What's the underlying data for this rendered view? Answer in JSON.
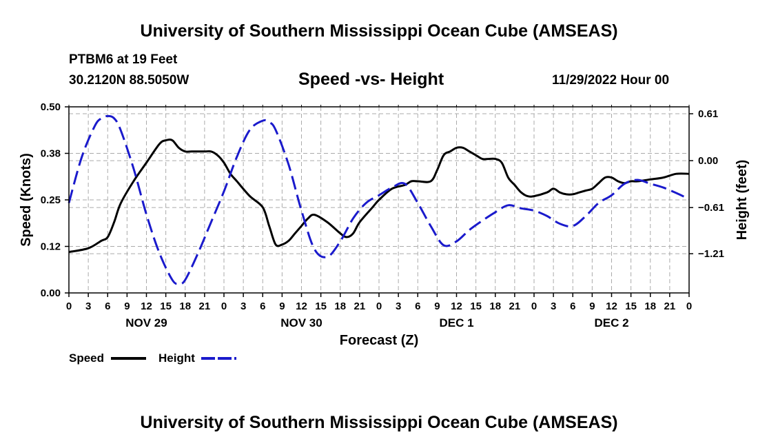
{
  "header": {
    "title": "University of Southern Mississippi Ocean Cube (AMSEAS)",
    "station": "PTBM6 at 19 Feet",
    "coords": "30.2120N  88.5050W",
    "subtitle": "Speed -vs- Height",
    "datestamp": "11/29/2022 Hour 00"
  },
  "footer": {
    "title": "University of Southern Mississippi Ocean Cube (AMSEAS)"
  },
  "colors": {
    "speed": "#000000",
    "height": "#1a1acc",
    "grid": "#aaaaaa"
  },
  "chart_data": {
    "type": "line",
    "title": "Speed -vs- Height",
    "xlabel": "Forecast (Z)",
    "ylabel": "Speed (Knots)",
    "y2label": "Height (feet)",
    "xlim": [
      0,
      96
    ],
    "ylim": [
      0,
      0.5
    ],
    "y2lim": [
      -1.72,
      0.7
    ],
    "x_tick_labels": [
      "0",
      "3",
      "6",
      "9",
      "12",
      "15",
      "18",
      "21",
      "0",
      "3",
      "6",
      "9",
      "12",
      "15",
      "18",
      "21",
      "0",
      "3",
      "6",
      "9",
      "12",
      "15",
      "18",
      "21",
      "0",
      "3",
      "6",
      "9",
      "12",
      "15",
      "18",
      "21",
      "0"
    ],
    "y_ticks": [
      {
        "value": 0,
        "label": "0.00"
      },
      {
        "value": 0.125,
        "label": "0.12"
      },
      {
        "value": 0.25,
        "label": "0.25"
      },
      {
        "value": 0.375,
        "label": "0.38"
      },
      {
        "value": 0.5,
        "label": "0.50"
      }
    ],
    "y2_ticks": [
      {
        "value": 0.61,
        "label": "0.61"
      },
      {
        "value": 0.0,
        "label": "0.00"
      },
      {
        "value": -0.61,
        "label": "−0.61"
      },
      {
        "value": -1.21,
        "label": "−1.21"
      }
    ],
    "day_labels": [
      {
        "x": 12,
        "label": "NOV 29"
      },
      {
        "x": 36,
        "label": "NOV 30"
      },
      {
        "x": 60,
        "label": "DEC 1"
      },
      {
        "x": 84,
        "label": "DEC 2"
      }
    ],
    "series": [
      {
        "name": "Speed",
        "axis": "left",
        "x": [
          0,
          3,
          5,
          6,
          7,
          8,
          10,
          12,
          14,
          15,
          16,
          17,
          18,
          19,
          21,
          22,
          23,
          24,
          25,
          26,
          28,
          30,
          31,
          32,
          33,
          34,
          35,
          36,
          37,
          38,
          40,
          42,
          43,
          44,
          45,
          47,
          48,
          50,
          52,
          53,
          54,
          56,
          57,
          58,
          59,
          60,
          61,
          62,
          63,
          64,
          65,
          66,
          67,
          68,
          69,
          70,
          71,
          72,
          74,
          75,
          76,
          77,
          78,
          79,
          80,
          81,
          82,
          83,
          84,
          85,
          86,
          87,
          88,
          90,
          92,
          94,
          96
        ],
        "values": [
          0.11,
          0.12,
          0.14,
          0.15,
          0.19,
          0.24,
          0.3,
          0.35,
          0.4,
          0.41,
          0.41,
          0.39,
          0.38,
          0.38,
          0.38,
          0.38,
          0.37,
          0.35,
          0.32,
          0.3,
          0.26,
          0.23,
          0.18,
          0.13,
          0.13,
          0.14,
          0.16,
          0.18,
          0.2,
          0.21,
          0.19,
          0.16,
          0.15,
          0.16,
          0.19,
          0.23,
          0.25,
          0.28,
          0.29,
          0.3,
          0.3,
          0.3,
          0.33,
          0.37,
          0.38,
          0.39,
          0.39,
          0.38,
          0.37,
          0.36,
          0.36,
          0.36,
          0.35,
          0.31,
          0.29,
          0.27,
          0.26,
          0.26,
          0.27,
          0.28,
          0.27,
          0.265,
          0.265,
          0.27,
          0.275,
          0.28,
          0.295,
          0.31,
          0.31,
          0.3,
          0.295,
          0.3,
          0.3,
          0.305,
          0.31,
          0.32,
          0.32
        ]
      },
      {
        "name": "Height",
        "axis": "right",
        "x": [
          0,
          2,
          4,
          5,
          6,
          7,
          8,
          10,
          12,
          14,
          16,
          17,
          18,
          20,
          22,
          24,
          26,
          28,
          30,
          31,
          32,
          34,
          36,
          38,
          40,
          42,
          44,
          46,
          48,
          50,
          52,
          54,
          56,
          58,
          60,
          62,
          64,
          66,
          68,
          70,
          72,
          74,
          76,
          78,
          80,
          82,
          84,
          86,
          88,
          90,
          92,
          94,
          96
        ],
        "values": [
          -0.55,
          0.05,
          0.45,
          0.55,
          0.58,
          0.55,
          0.4,
          -0.1,
          -0.7,
          -1.2,
          -1.55,
          -1.6,
          -1.55,
          -1.2,
          -0.8,
          -0.4,
          0.05,
          0.4,
          0.52,
          0.5,
          0.4,
          -0.05,
          -0.65,
          -1.15,
          -1.25,
          -1.05,
          -0.75,
          -0.55,
          -0.45,
          -0.35,
          -0.3,
          -0.55,
          -0.85,
          -1.1,
          -1.05,
          -0.9,
          -0.78,
          -0.67,
          -0.58,
          -0.62,
          -0.65,
          -0.72,
          -0.82,
          -0.85,
          -0.72,
          -0.55,
          -0.45,
          -0.3,
          -0.25,
          -0.3,
          -0.35,
          -0.42,
          -0.5
        ]
      }
    ],
    "legend": [
      {
        "name": "Speed",
        "label": "Speed",
        "style": "solid"
      },
      {
        "name": "Height",
        "label": "Height",
        "style": "dashed"
      }
    ]
  }
}
